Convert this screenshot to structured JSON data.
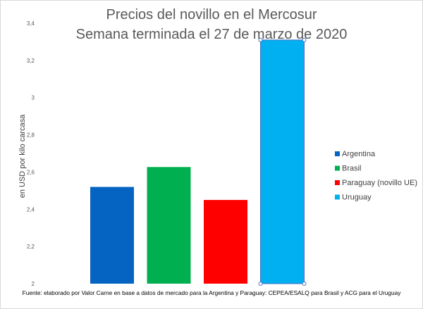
{
  "chart_data": {
    "type": "bar",
    "title": "Precios del novillo en el Mercosur",
    "subtitle": "Semana terminada el 27 de marzo de 2020",
    "ylabel": "en USD por kilo carcasa",
    "xlabel": "",
    "ylim": [
      2,
      3.4
    ],
    "yticks": [
      "2",
      "2,2",
      "2,4",
      "2,6",
      "2,8",
      "3",
      "3,2",
      "3,4"
    ],
    "grid": false,
    "legend_position": "right",
    "series": [
      {
        "name": "Argentina",
        "value": 2.52,
        "color": "#0563c1"
      },
      {
        "name": "Brasil",
        "value": 2.627,
        "color": "#00b050"
      },
      {
        "name": "Paraguay (novillo UE)",
        "value": 2.45,
        "color": "#ff0000"
      },
      {
        "name": "Uruguay",
        "value": 3.31,
        "color": "#00b0f0"
      }
    ],
    "source": "Fuente: elaborado por Valor Carne en base a datos de mercado para la Argentina y Paraguay: CEPEA/ESALQ para Brasil y ACG para el Uruguay"
  }
}
